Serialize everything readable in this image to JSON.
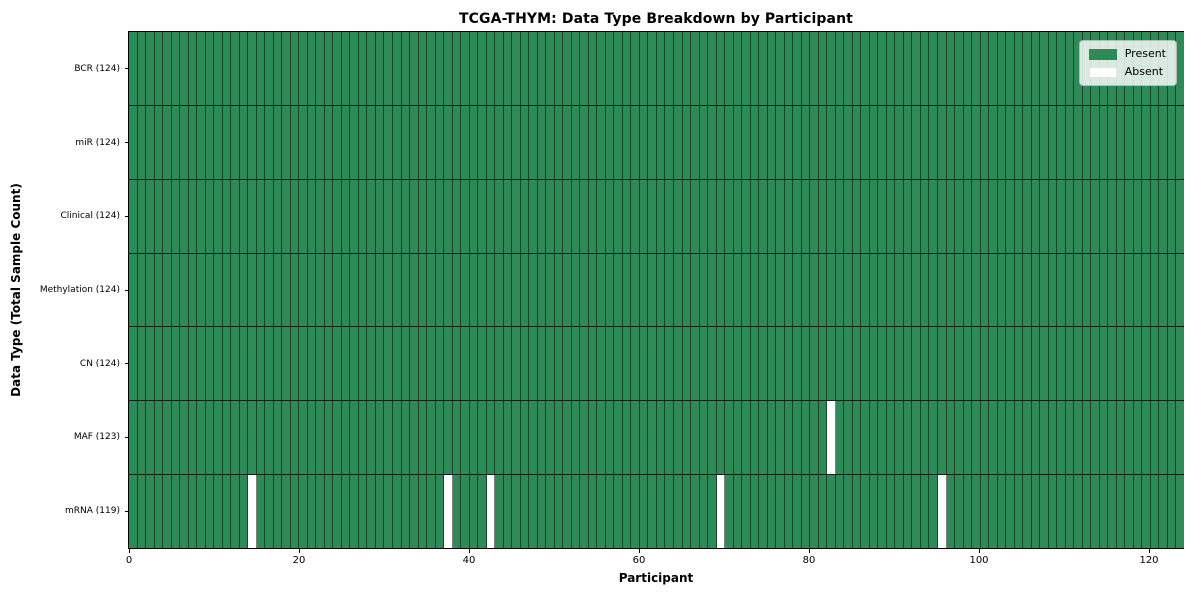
{
  "title": "TCGA-THYM: Data Type Breakdown by Participant",
  "axes": {
    "xlabel": "Participant",
    "ylabel": "Data Type (Total Sample Count)"
  },
  "legend": {
    "present_label": "Present",
    "absent_label": "Absent"
  },
  "colors": {
    "present": "#2e8b57",
    "absent": "#ffffff",
    "cell_edge": "rgba(0,0,0,0.5)",
    "row_edge": "rgba(0,0,0,0.75)",
    "plot_border": "#000000"
  },
  "chart_data": {
    "type": "heatmap",
    "title": "TCGA-THYM: Data Type Breakdown by Participant",
    "xlabel": "Participant",
    "ylabel": "Data Type (Total Sample Count)",
    "n_participants": 124,
    "x_range": [
      0,
      124
    ],
    "x_ticks": [
      0,
      20,
      40,
      60,
      80,
      100,
      120
    ],
    "grid": "cell-edges",
    "legend_position": "upper right",
    "legend": [
      {
        "label": "Present",
        "color": "#2e8b57"
      },
      {
        "label": "Absent",
        "color": "#ffffff"
      }
    ],
    "rows": [
      {
        "label": "BCR (124)",
        "data_type": "BCR",
        "present_count": 124,
        "absent_participants": []
      },
      {
        "label": "miR (124)",
        "data_type": "miR",
        "present_count": 124,
        "absent_participants": []
      },
      {
        "label": "Clinical (124)",
        "data_type": "Clinical",
        "present_count": 124,
        "absent_participants": []
      },
      {
        "label": "Methylation (124)",
        "data_type": "Methylation",
        "present_count": 124,
        "absent_participants": []
      },
      {
        "label": "CN (124)",
        "data_type": "CN",
        "present_count": 124,
        "absent_participants": []
      },
      {
        "label": "MAF (123)",
        "data_type": "MAF",
        "present_count": 123,
        "absent_participants": [
          82
        ]
      },
      {
        "label": "mRNA (119)",
        "data_type": "mRNA",
        "present_count": 119,
        "absent_participants": [
          14,
          37,
          42,
          69,
          95
        ]
      }
    ]
  }
}
